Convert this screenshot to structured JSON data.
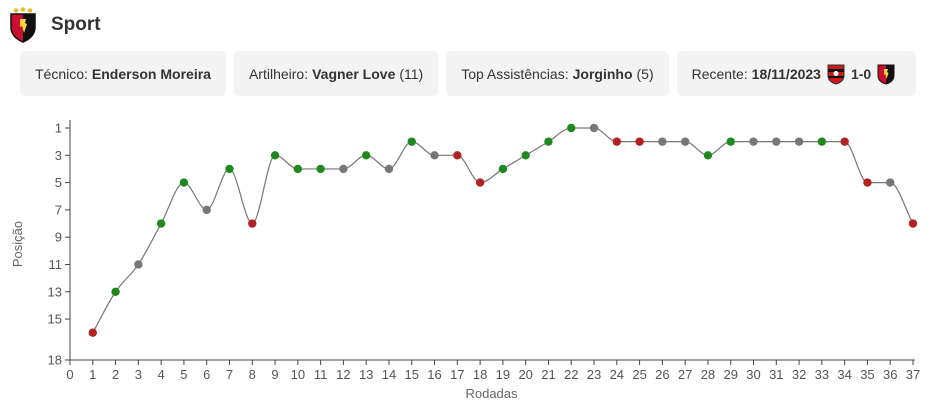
{
  "team": {
    "name": "Sport"
  },
  "cards": {
    "coach_label": "Técnico:",
    "coach_value": "Enderson Moreira",
    "scorer_label": "Artilheiro:",
    "scorer_value": "Vagner Love",
    "scorer_count": "(11)",
    "assists_label": "Top Assistências:",
    "assists_value": "Jorginho",
    "assists_count": "(5)",
    "recent_label": "Recente:",
    "recent_date": "18/11/2023",
    "recent_score": "1-0"
  },
  "colors": {
    "win": "#1e8a1e",
    "draw": "#777777",
    "loss": "#b22222",
    "line": "#777777",
    "crest_red": "#c8102e",
    "crest_black": "#111111",
    "crest_gold": "#e8b923",
    "vitoria_red": "#cc1a1a"
  },
  "chart_data": {
    "type": "line",
    "xlabel": "Rodadas",
    "ylabel": "Posição",
    "xlim": [
      0,
      37
    ],
    "ylim": [
      1,
      18
    ],
    "y_reversed": true,
    "x_ticks": [
      0,
      1,
      2,
      3,
      4,
      5,
      6,
      7,
      8,
      9,
      10,
      11,
      12,
      13,
      14,
      15,
      16,
      17,
      18,
      19,
      20,
      21,
      22,
      23,
      24,
      25,
      26,
      27,
      28,
      29,
      30,
      31,
      32,
      33,
      34,
      35,
      36,
      37
    ],
    "y_ticks": [
      1,
      3,
      5,
      7,
      9,
      11,
      13,
      15,
      18
    ],
    "series": [
      {
        "x": [
          1,
          2,
          3,
          4,
          5,
          6,
          7,
          8,
          9,
          10,
          11,
          12,
          13,
          14,
          15,
          16,
          17,
          18,
          19,
          20,
          21,
          22,
          23,
          24,
          25,
          26,
          27,
          28,
          29,
          30,
          31,
          32,
          33,
          34,
          35,
          36,
          37
        ],
        "y": [
          16,
          13,
          11,
          8,
          5,
          7,
          4,
          8,
          3,
          4,
          4,
          4,
          3,
          4,
          2,
          3,
          3,
          5,
          4,
          3,
          2,
          1,
          1,
          2,
          2,
          2,
          2,
          3,
          2,
          2,
          2,
          2,
          2,
          2,
          5,
          5,
          8
        ],
        "results": [
          "L",
          "W",
          "D",
          "W",
          "W",
          "D",
          "W",
          "L",
          "W",
          "W",
          "W",
          "D",
          "W",
          "D",
          "W",
          "D",
          "L",
          "L",
          "W",
          "W",
          "W",
          "W",
          "D",
          "L",
          "L",
          "D",
          "D",
          "W",
          "W",
          "D",
          "D",
          "D",
          "W",
          "L",
          "L",
          "D",
          "L"
        ]
      }
    ]
  }
}
